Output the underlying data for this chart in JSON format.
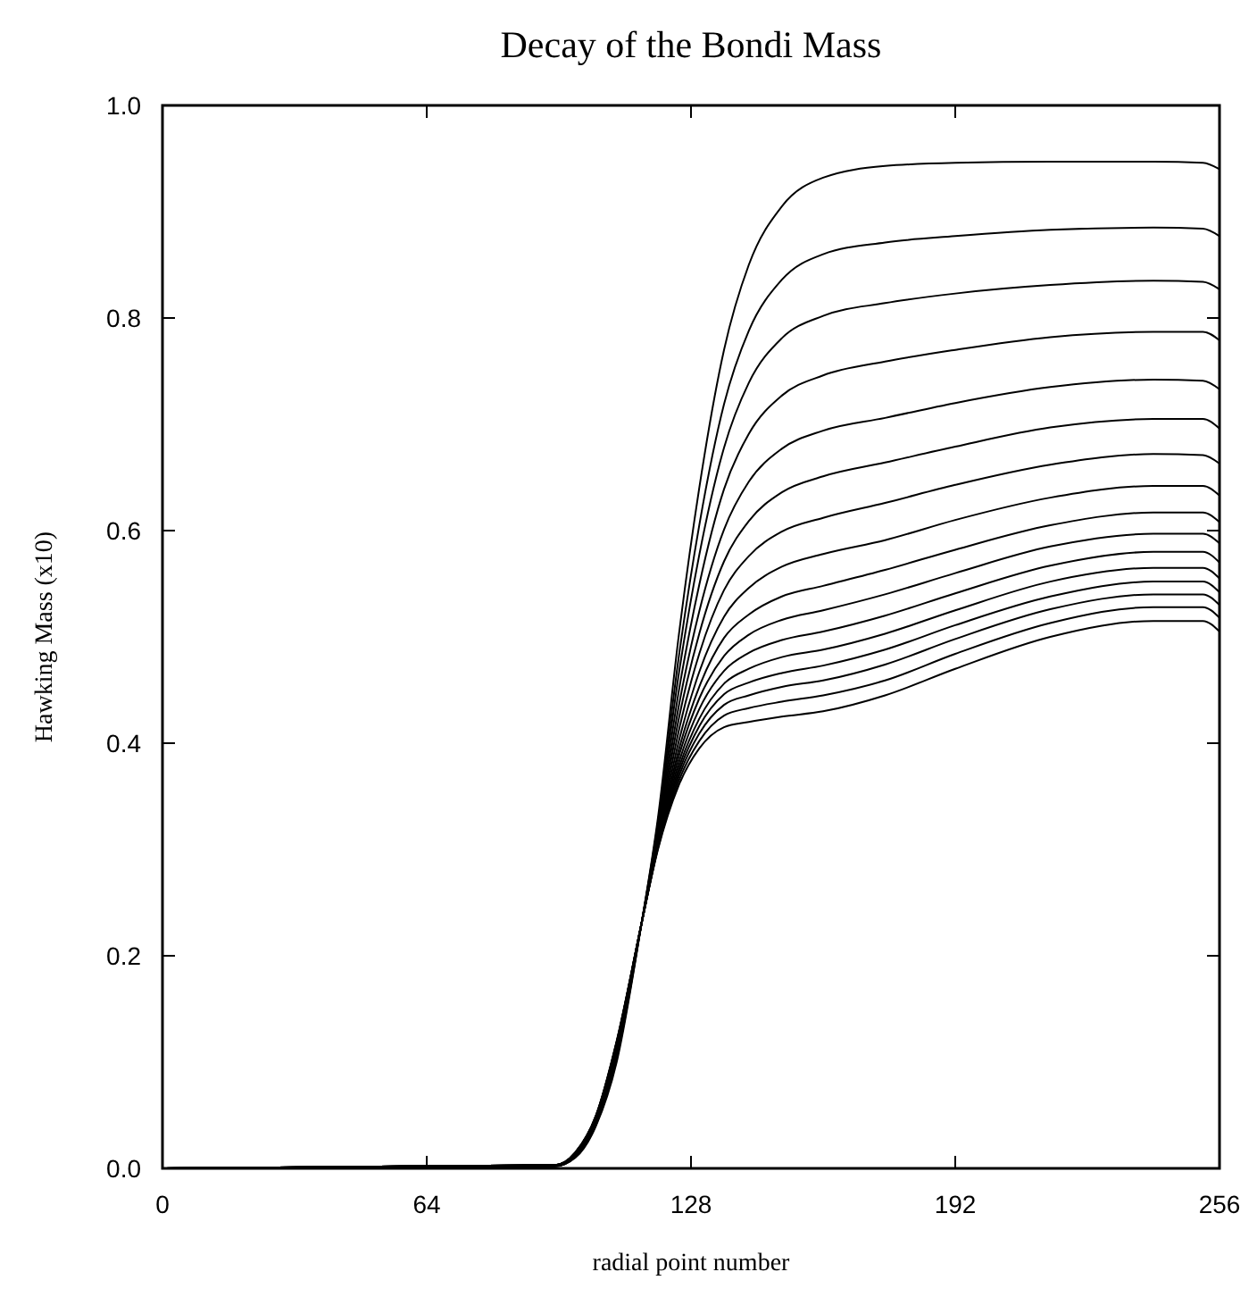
{
  "chart_data": {
    "type": "line",
    "title": "Decay of the Bondi Mass",
    "xlabel": "radial point number",
    "ylabel": "Hawking Mass  (x10)",
    "x": [
      0,
      95,
      100,
      105,
      110,
      116,
      120,
      125,
      130,
      136,
      142,
      150,
      160,
      175,
      192,
      215,
      240,
      252,
      256
    ],
    "xlim": [
      0,
      256
    ],
    "xticks": [
      0,
      64,
      128,
      192,
      256
    ],
    "ylim": [
      0,
      1
    ],
    "yticks": [
      {
        "value": 0,
        "label": "0.0"
      },
      0.2,
      0.4,
      0.6,
      0.8,
      {
        "value": 1,
        "label": "1.0"
      }
    ],
    "grid": false,
    "marker": "none",
    "line_style": "solid",
    "series": [
      {
        "color": "#000000",
        "values": [
          0,
          0.002,
          0.01,
          0.04,
          0.1,
          0.23,
          0.33,
          0.5,
          0.64,
          0.77,
          0.85,
          0.905,
          0.932,
          0.943,
          0.946,
          0.947,
          0.947,
          0.946,
          0.94
        ]
      },
      {
        "color": "#000000",
        "values": [
          0,
          0.002,
          0.011,
          0.041,
          0.103,
          0.23,
          0.326,
          0.48,
          0.605,
          0.719,
          0.788,
          0.836,
          0.86,
          0.871,
          0.877,
          0.883,
          0.885,
          0.884,
          0.877
        ]
      },
      {
        "color": "#000000",
        "values": [
          0,
          0.002,
          0.011,
          0.043,
          0.105,
          0.23,
          0.322,
          0.464,
          0.577,
          0.678,
          0.739,
          0.781,
          0.802,
          0.814,
          0.823,
          0.831,
          0.835,
          0.834,
          0.827
        ]
      },
      {
        "color": "#000000",
        "values": [
          0,
          0.002,
          0.012,
          0.044,
          0.107,
          0.23,
          0.319,
          0.448,
          0.549,
          0.639,
          0.691,
          0.727,
          0.746,
          0.759,
          0.77,
          0.782,
          0.787,
          0.787,
          0.779
        ]
      },
      {
        "color": "#000000",
        "values": [
          0,
          0.002,
          0.012,
          0.045,
          0.11,
          0.23,
          0.316,
          0.434,
          0.524,
          0.601,
          0.646,
          0.677,
          0.694,
          0.706,
          0.72,
          0.735,
          0.742,
          0.741,
          0.733
        ]
      },
      {
        "color": "#000000",
        "values": [
          0,
          0.003,
          0.013,
          0.046,
          0.111,
          0.23,
          0.313,
          0.422,
          0.503,
          0.571,
          0.609,
          0.636,
          0.651,
          0.664,
          0.679,
          0.697,
          0.705,
          0.705,
          0.696
        ]
      },
      {
        "color": "#000000",
        "values": [
          0,
          0.003,
          0.013,
          0.046,
          0.113,
          0.23,
          0.311,
          0.411,
          0.484,
          0.544,
          0.576,
          0.599,
          0.612,
          0.626,
          0.643,
          0.662,
          0.672,
          0.671,
          0.663
        ]
      },
      {
        "color": "#000000",
        "values": [
          0,
          0.003,
          0.014,
          0.047,
          0.114,
          0.23,
          0.309,
          0.401,
          0.467,
          0.519,
          0.546,
          0.566,
          0.578,
          0.591,
          0.61,
          0.631,
          0.642,
          0.642,
          0.633
        ]
      },
      {
        "color": "#000000",
        "values": [
          0,
          0.003,
          0.014,
          0.048,
          0.115,
          0.23,
          0.307,
          0.393,
          0.453,
          0.499,
          0.521,
          0.538,
          0.548,
          0.563,
          0.582,
          0.605,
          0.617,
          0.617,
          0.608
        ]
      },
      {
        "color": "#000000",
        "values": [
          0,
          0.003,
          0.014,
          0.048,
          0.116,
          0.23,
          0.306,
          0.387,
          0.442,
          0.482,
          0.502,
          0.516,
          0.525,
          0.54,
          0.56,
          0.585,
          0.597,
          0.597,
          0.588
        ]
      },
      {
        "color": "#000000",
        "values": [
          0,
          0.003,
          0.014,
          0.049,
          0.117,
          0.23,
          0.305,
          0.381,
          0.432,
          0.468,
          0.485,
          0.497,
          0.505,
          0.52,
          0.541,
          0.567,
          0.58,
          0.58,
          0.57
        ]
      },
      {
        "color": "#000000",
        "values": [
          0,
          0.003,
          0.014,
          0.049,
          0.118,
          0.23,
          0.303,
          0.376,
          0.423,
          0.456,
          0.47,
          0.481,
          0.488,
          0.503,
          0.525,
          0.552,
          0.565,
          0.565,
          0.555
        ]
      },
      {
        "color": "#000000",
        "values": [
          0,
          0.003,
          0.015,
          0.049,
          0.118,
          0.23,
          0.303,
          0.372,
          0.416,
          0.446,
          0.457,
          0.466,
          0.473,
          0.488,
          0.511,
          0.538,
          0.552,
          0.552,
          0.542
        ]
      },
      {
        "color": "#000000",
        "values": [
          0,
          0.003,
          0.015,
          0.049,
          0.119,
          0.23,
          0.302,
          0.368,
          0.409,
          0.436,
          0.445,
          0.453,
          0.459,
          0.474,
          0.498,
          0.526,
          0.54,
          0.54,
          0.53
        ]
      },
      {
        "color": "#000000",
        "values": [
          0,
          0.003,
          0.015,
          0.05,
          0.119,
          0.23,
          0.301,
          0.364,
          0.402,
          0.426,
          0.433,
          0.439,
          0.445,
          0.459,
          0.484,
          0.513,
          0.528,
          0.528,
          0.518
        ]
      },
      {
        "color": "#000000",
        "values": [
          0,
          0.003,
          0.015,
          0.05,
          0.12,
          0.23,
          0.3,
          0.36,
          0.395,
          0.415,
          0.42,
          0.425,
          0.43,
          0.445,
          0.47,
          0.5,
          0.515,
          0.515,
          0.505
        ]
      }
    ]
  }
}
